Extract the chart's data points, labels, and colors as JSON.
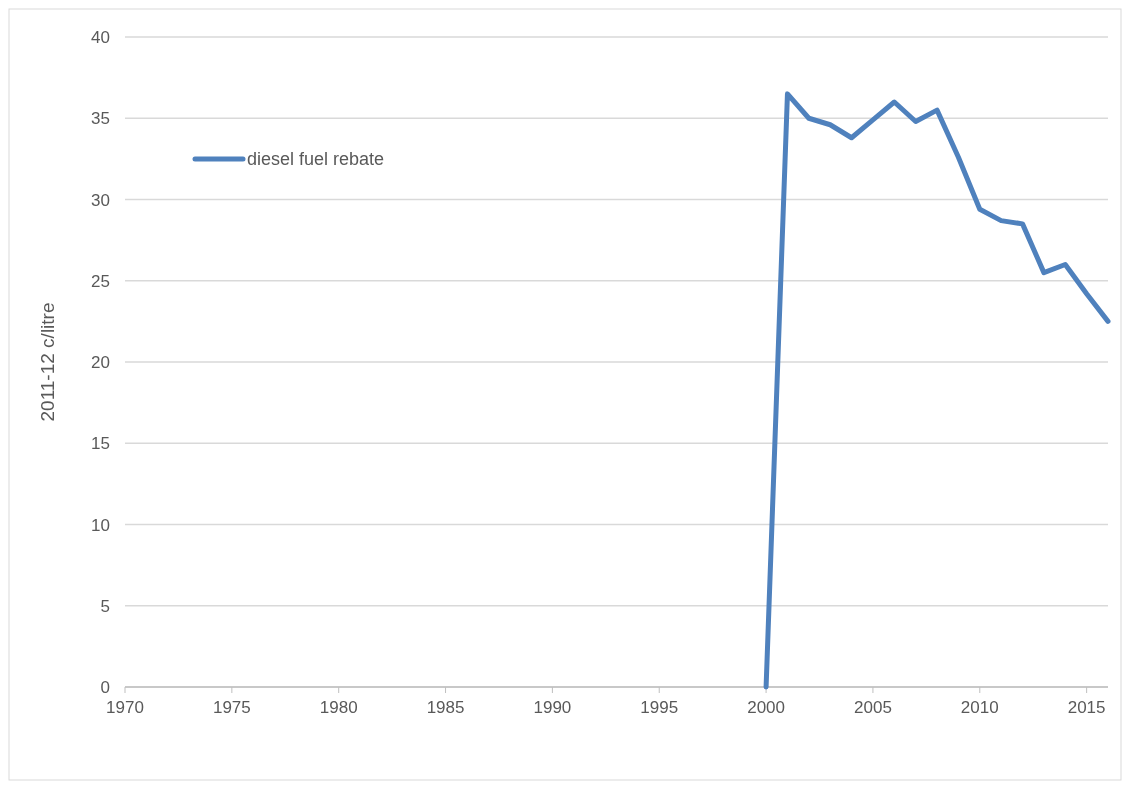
{
  "chart_data": {
    "type": "line",
    "ylabel": "2011-12 c/litre",
    "x": [
      2000,
      2001,
      2002,
      2003,
      2004,
      2005,
      2006,
      2007,
      2008,
      2009,
      2010,
      2011,
      2012,
      2013,
      2014,
      2015,
      2016
    ],
    "series": [
      {
        "name": "diesel fuel rebate",
        "color": "#4f81bd",
        "values": [
          0,
          36.5,
          35.0,
          34.6,
          33.8,
          34.9,
          36.0,
          34.8,
          35.5,
          32.6,
          29.4,
          28.7,
          28.5,
          25.5,
          26.0,
          24.2,
          22.5
        ]
      }
    ],
    "xlim": [
      1970,
      2016
    ],
    "xticks": [
      1970,
      1975,
      1980,
      1985,
      1990,
      1995,
      2000,
      2005,
      2010,
      2015
    ],
    "ylim": [
      0,
      40
    ],
    "yticks": [
      0,
      5,
      10,
      15,
      20,
      25,
      30,
      35,
      40
    ],
    "grid": "y",
    "legend": "top left",
    "marker": "none",
    "line_style": "solid"
  }
}
